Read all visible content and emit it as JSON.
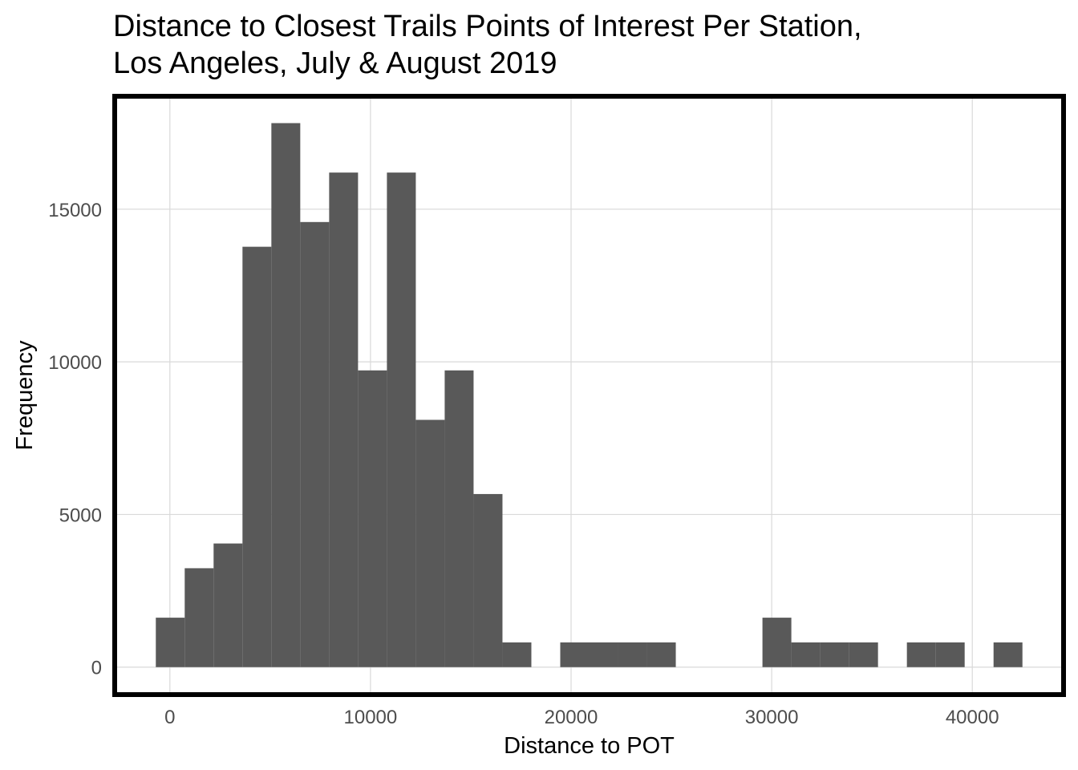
{
  "chart_data": {
    "type": "bar",
    "title_line1": "Distance to Closest Trails Points of Interest Per Station,",
    "title_line2": "Los Angeles, July & August 2019",
    "xlabel": "Distance to POT",
    "ylabel": "Frequency",
    "xlim": [
      -2750,
      44550
    ],
    "ylim": [
      -900,
      18700
    ],
    "x_ticks": [
      0,
      10000,
      20000,
      30000,
      40000
    ],
    "x_tick_labels": [
      "0",
      "10000",
      "20000",
      "30000",
      "40000"
    ],
    "y_ticks": [
      0,
      5000,
      10000,
      15000
    ],
    "y_tick_labels": [
      "0",
      "5000",
      "10000",
      "15000"
    ],
    "grid": true,
    "panel_border": true,
    "bar_color": "#595959",
    "grid_color": "#d9d9d9",
    "bins": [
      {
        "x0": -700,
        "x1": 740,
        "count": 1620
      },
      {
        "x0": 740,
        "x1": 2180,
        "count": 3240
      },
      {
        "x0": 2180,
        "x1": 3620,
        "count": 4050
      },
      {
        "x0": 3620,
        "x1": 5060,
        "count": 13770
      },
      {
        "x0": 5060,
        "x1": 6500,
        "count": 17820
      },
      {
        "x0": 6500,
        "x1": 7940,
        "count": 14580
      },
      {
        "x0": 7940,
        "x1": 9380,
        "count": 16200
      },
      {
        "x0": 9380,
        "x1": 10820,
        "count": 9720
      },
      {
        "x0": 10820,
        "x1": 12260,
        "count": 16200
      },
      {
        "x0": 12260,
        "x1": 13700,
        "count": 8100
      },
      {
        "x0": 13700,
        "x1": 15140,
        "count": 9720
      },
      {
        "x0": 15140,
        "x1": 16580,
        "count": 5670
      },
      {
        "x0": 16580,
        "x1": 18020,
        "count": 810
      },
      {
        "x0": 18020,
        "x1": 19460,
        "count": 0
      },
      {
        "x0": 19460,
        "x1": 20900,
        "count": 810
      },
      {
        "x0": 20900,
        "x1": 22340,
        "count": 810
      },
      {
        "x0": 22340,
        "x1": 23780,
        "count": 810
      },
      {
        "x0": 23780,
        "x1": 25220,
        "count": 810
      },
      {
        "x0": 25220,
        "x1": 26660,
        "count": 0
      },
      {
        "x0": 26660,
        "x1": 28100,
        "count": 0
      },
      {
        "x0": 28100,
        "x1": 29540,
        "count": 0
      },
      {
        "x0": 29540,
        "x1": 30980,
        "count": 1620
      },
      {
        "x0": 30980,
        "x1": 32420,
        "count": 810
      },
      {
        "x0": 32420,
        "x1": 33860,
        "count": 810
      },
      {
        "x0": 33860,
        "x1": 35300,
        "count": 810
      },
      {
        "x0": 35300,
        "x1": 36740,
        "count": 0
      },
      {
        "x0": 36740,
        "x1": 38180,
        "count": 810
      },
      {
        "x0": 38180,
        "x1": 39620,
        "count": 810
      },
      {
        "x0": 39620,
        "x1": 41060,
        "count": 0
      },
      {
        "x0": 41060,
        "x1": 42500,
        "count": 810
      }
    ]
  }
}
